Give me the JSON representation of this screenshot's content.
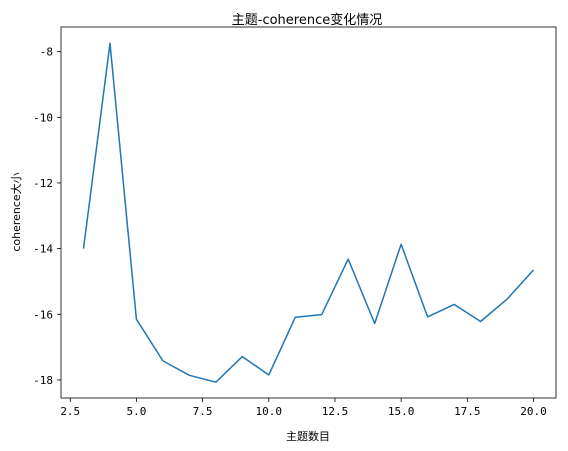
{
  "chart_data": {
    "type": "line",
    "title": "主题-coherence变化情况",
    "xlabel": "主题数目",
    "ylabel": "coherence大小",
    "xlim": [
      2.15,
      20.85
    ],
    "ylim": [
      -18.55,
      -7.25
    ],
    "x_ticks": [
      2.5,
      5.0,
      7.5,
      10.0,
      12.5,
      15.0,
      17.5,
      20.0
    ],
    "x_tick_labels": [
      "2.5",
      "5.0",
      "7.5",
      "10.0",
      "12.5",
      "15.0",
      "17.5",
      "20.0"
    ],
    "y_ticks": [
      -18,
      -16,
      -14,
      -12,
      -10,
      -8
    ],
    "y_tick_labels": [
      "-18",
      "-16",
      "-14",
      "-12",
      "-10",
      "-8"
    ],
    "grid": false,
    "series": [
      {
        "color": "#1f77b4",
        "x": [
          3,
          4,
          5,
          6,
          7,
          8,
          9,
          10,
          11,
          12,
          13,
          14,
          15,
          16,
          17,
          18,
          19,
          20
        ],
        "y": [
          -14.0,
          -7.75,
          -16.15,
          -17.42,
          -17.86,
          -18.07,
          -17.29,
          -17.85,
          -16.09,
          -16.01,
          -14.32,
          -16.28,
          -13.87,
          -16.08,
          -15.7,
          -16.22,
          -15.54,
          -14.65
        ]
      }
    ]
  }
}
